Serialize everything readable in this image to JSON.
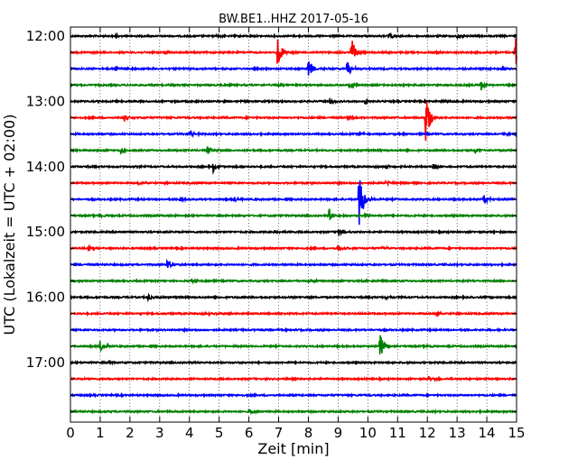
{
  "chart_data": {
    "type": "line",
    "title": "BW.BE1..HHZ 2017-05-16",
    "xlabel": "Zeit  [min]",
    "ylabel": "UTC (Lokalzeit = UTC + 02:00)",
    "xlim": [
      0,
      15
    ],
    "x_ticks": [
      "0",
      "1",
      "2",
      "3",
      "4",
      "5",
      "6",
      "7",
      "8",
      "9",
      "10",
      "11",
      "12",
      "13",
      "14",
      "15"
    ],
    "y_tick_labels": [
      "12:00",
      "13:00",
      "14:00",
      "15:00",
      "16:00",
      "17:00"
    ],
    "grid": true,
    "trace_interval_min": 15,
    "trace_colors": [
      "#000000",
      "#ff0000",
      "#0000ff",
      "#008000"
    ],
    "traces": [
      {
        "start": "12:00",
        "color": "#000000",
        "events": [
          {
            "x": 1.5,
            "amp": 0.15
          },
          {
            "x": 4.9,
            "amp": 0.15
          },
          {
            "x": 10.7,
            "amp": 0.3
          },
          {
            "x": 13.0,
            "amp": 0.25
          }
        ]
      },
      {
        "start": "12:15",
        "color": "#ff0000",
        "events": [
          {
            "x": 3.2,
            "amp": 0.15
          },
          {
            "x": 6.95,
            "amp": 1.5
          },
          {
            "x": 9.45,
            "amp": 1.2
          },
          {
            "x": 14.95,
            "amp": 1.7
          }
        ]
      },
      {
        "start": "12:30",
        "color": "#0000ff",
        "events": [
          {
            "x": 1.5,
            "amp": 0.3
          },
          {
            "x": 8.0,
            "amp": 0.9
          },
          {
            "x": 9.3,
            "amp": 0.8
          },
          {
            "x": 14.5,
            "amp": 0.3
          }
        ]
      },
      {
        "start": "12:45",
        "color": "#008000",
        "events": [
          {
            "x": 7.0,
            "amp": 0.2
          },
          {
            "x": 9.4,
            "amp": 0.35
          },
          {
            "x": 13.8,
            "amp": 0.5
          }
        ]
      },
      {
        "start": "13:00",
        "color": "#000000",
        "events": [
          {
            "x": 8.7,
            "amp": 0.25
          },
          {
            "x": 9.9,
            "amp": 0.2
          },
          {
            "x": 12.45,
            "amp": 0.2
          }
        ]
      },
      {
        "start": "13:15",
        "color": "#ff0000",
        "events": [
          {
            "x": 1.8,
            "amp": 0.3
          },
          {
            "x": 9.3,
            "amp": 0.3
          },
          {
            "x": 11.95,
            "amp": 2.1
          }
        ]
      },
      {
        "start": "13:30",
        "color": "#0000ff",
        "events": [
          {
            "x": 4.0,
            "amp": 0.3
          },
          {
            "x": 9.7,
            "amp": 0.2
          },
          {
            "x": 14.6,
            "amp": 0.3
          }
        ]
      },
      {
        "start": "13:45",
        "color": "#008000",
        "events": [
          {
            "x": 1.7,
            "amp": 0.3
          },
          {
            "x": 4.6,
            "amp": 0.35
          },
          {
            "x": 13.6,
            "amp": 0.25
          }
        ]
      },
      {
        "start": "14:00",
        "color": "#000000",
        "events": [
          {
            "x": 4.8,
            "amp": 0.45
          },
          {
            "x": 10.6,
            "amp": 0.2
          },
          {
            "x": 12.2,
            "amp": 0.3
          }
        ]
      },
      {
        "start": "14:15",
        "color": "#ff0000",
        "events": [
          {
            "x": 2.3,
            "amp": 0.2
          },
          {
            "x": 10.6,
            "amp": 0.15
          }
        ]
      },
      {
        "start": "14:30",
        "color": "#0000ff",
        "events": [
          {
            "x": 3.7,
            "amp": 0.25
          },
          {
            "x": 5.5,
            "amp": 0.25
          },
          {
            "x": 9.7,
            "amp": 2.6
          },
          {
            "x": 13.9,
            "amp": 0.5
          }
        ]
      },
      {
        "start": "14:45",
        "color": "#008000",
        "events": [
          {
            "x": 1.0,
            "amp": 0.15
          },
          {
            "x": 8.7,
            "amp": 0.6
          },
          {
            "x": 9.9,
            "amp": 0.25
          }
        ]
      },
      {
        "start": "15:00",
        "color": "#000000",
        "events": [
          {
            "x": 9.0,
            "amp": 0.3
          },
          {
            "x": 6.9,
            "amp": 0.15
          }
        ]
      },
      {
        "start": "15:15",
        "color": "#ff0000",
        "events": [
          {
            "x": 0.6,
            "amp": 0.3
          },
          {
            "x": 9.0,
            "amp": 0.25
          },
          {
            "x": 10.5,
            "amp": 0.2
          }
        ]
      },
      {
        "start": "15:30",
        "color": "#0000ff",
        "events": [
          {
            "x": 3.25,
            "amp": 0.4
          }
        ]
      },
      {
        "start": "15:45",
        "color": "#008000",
        "events": [
          {
            "x": 4.1,
            "amp": 0.2
          },
          {
            "x": 8.0,
            "amp": 0.15
          }
        ]
      },
      {
        "start": "16:00",
        "color": "#000000",
        "events": [
          {
            "x": 2.6,
            "amp": 0.3
          },
          {
            "x": 10.6,
            "amp": 0.15
          }
        ]
      },
      {
        "start": "16:15",
        "color": "#ff0000",
        "events": [
          {
            "x": 4.5,
            "amp": 0.15
          },
          {
            "x": 12.3,
            "amp": 0.25
          }
        ]
      },
      {
        "start": "16:30",
        "color": "#0000ff",
        "events": [
          {
            "x": 7.0,
            "amp": 0.15
          }
        ]
      },
      {
        "start": "16:45",
        "color": "#008000",
        "events": [
          {
            "x": 1.0,
            "amp": 0.5
          },
          {
            "x": 10.4,
            "amp": 1.1
          },
          {
            "x": 12.0,
            "amp": 0.15
          }
        ]
      },
      {
        "start": "17:00",
        "color": "#000000",
        "events": [
          {
            "x": 1.3,
            "amp": 0.2
          }
        ]
      },
      {
        "start": "17:15",
        "color": "#ff0000",
        "events": [
          {
            "x": 12.05,
            "amp": 0.3
          }
        ]
      },
      {
        "start": "17:30",
        "color": "#0000ff",
        "events": []
      },
      {
        "start": "17:45",
        "color": "#008000",
        "events": [
          {
            "x": 6.0,
            "amp": 0.25
          }
        ]
      }
    ]
  }
}
